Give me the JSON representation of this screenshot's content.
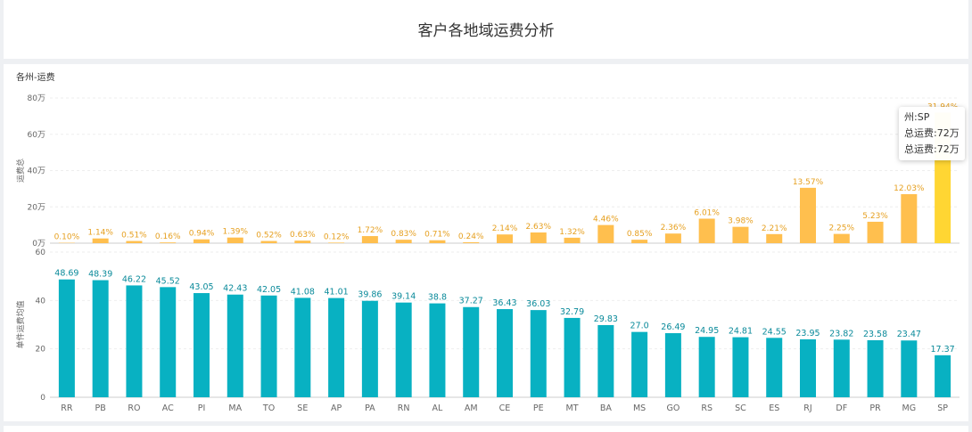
{
  "page": {
    "title": "客户各地域运费分析"
  },
  "panel": {
    "title": "各州-运费"
  },
  "tooltip": {
    "state_line": "州:SP",
    "line1": "总运费:72万",
    "line2": "总运费:72万"
  },
  "colors": {
    "top_bar": "#ffbf4e",
    "top_bar_highlight": "#ffd633",
    "top_label": "#e6a020",
    "bottom_bar": "#08b1c2",
    "bottom_label": "#0a8a9a",
    "axis_text": "#666666",
    "grid": "#eeeeee"
  },
  "chart_data": [
    {
      "type": "bar",
      "title": "",
      "ylabel": "运费总",
      "ylim": [
        0,
        80
      ],
      "y_unit": "万",
      "yticks": [
        "0万",
        "20万",
        "40万",
        "60万",
        "80万"
      ],
      "categories": [
        "RR",
        "PB",
        "RO",
        "AC",
        "PI",
        "MA",
        "TO",
        "SE",
        "AP",
        "PA",
        "RN",
        "AL",
        "AM",
        "CE",
        "PE",
        "MT",
        "BA",
        "MS",
        "GO",
        "RS",
        "SC",
        "ES",
        "RJ",
        "DF",
        "PR",
        "MG",
        "SP"
      ],
      "values": [
        0.2,
        2.6,
        1.2,
        0.4,
        2.1,
        3.1,
        1.2,
        1.4,
        0.3,
        3.9,
        1.9,
        1.6,
        0.5,
        4.8,
        5.9,
        3.0,
        10.0,
        1.9,
        5.3,
        13.5,
        9.0,
        5.0,
        30.5,
        5.1,
        11.8,
        27.0,
        72.0
      ],
      "data_labels": [
        "0.10%",
        "1.14%",
        "0.51%",
        "0.16%",
        "0.94%",
        "1.39%",
        "0.52%",
        "0.63%",
        "0.12%",
        "1.72%",
        "0.83%",
        "0.71%",
        "0.24%",
        "2.14%",
        "2.63%",
        "1.32%",
        "4.46%",
        "0.85%",
        "2.36%",
        "6.01%",
        "3.98%",
        "2.21%",
        "13.57%",
        "2.25%",
        "5.23%",
        "12.03%",
        "31.94%"
      ]
    },
    {
      "type": "bar",
      "title": "",
      "ylabel": "单件运费均值",
      "ylim": [
        0,
        60
      ],
      "yticks": [
        "0",
        "20",
        "40",
        "60"
      ],
      "categories": [
        "RR",
        "PB",
        "RO",
        "AC",
        "PI",
        "MA",
        "TO",
        "SE",
        "AP",
        "PA",
        "RN",
        "AL",
        "AM",
        "CE",
        "PE",
        "MT",
        "BA",
        "MS",
        "GO",
        "RS",
        "SC",
        "ES",
        "RJ",
        "DF",
        "PR",
        "MG",
        "SP"
      ],
      "values": [
        48.69,
        48.39,
        46.22,
        45.52,
        43.05,
        42.43,
        42.05,
        41.08,
        41.01,
        39.86,
        39.14,
        38.8,
        37.27,
        36.43,
        36.03,
        32.79,
        29.83,
        27.0,
        26.49,
        24.95,
        24.81,
        24.55,
        23.95,
        23.82,
        23.58,
        23.47,
        17.37
      ],
      "data_labels": [
        "48.69",
        "48.39",
        "46.22",
        "45.52",
        "43.05",
        "42.43",
        "42.05",
        "41.08",
        "41.01",
        "39.86",
        "39.14",
        "38.8",
        "37.27",
        "36.43",
        "36.03",
        "32.79",
        "29.83",
        "27.0",
        "26.49",
        "24.95",
        "24.81",
        "24.55",
        "23.95",
        "23.82",
        "23.58",
        "23.47",
        "17.37"
      ]
    }
  ]
}
